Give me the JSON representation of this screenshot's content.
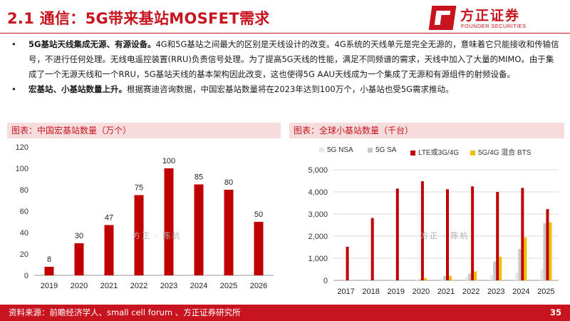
{
  "header": {
    "title": "2.1 通信：5G带来基站MOSFET需求",
    "logo_cn": "方正证券",
    "logo_en": "FOUNDER SECURITIES"
  },
  "bullets": [
    {
      "marker": "•",
      "lead": "5G基站天线集成无源、有源设备。",
      "text": "4G和5G基站之间最大的区别是天线设计的改变。4G系统的天线单元是完全无源的，意味着它只能接收和传输信号，不进行任何处理。无线电遥控装置(RRU)负责信号处理。为了提高5G天线的性能，满足不同频谱的需求，天线中加入了大量的MIMO。由于集成了一个无源天线和一个RRU，5G基站天线的基本架构因此改变，这也使得5G AAU天线成为一个集成了无源和有源组件的射频设备。"
    },
    {
      "marker": "•",
      "lead": "宏基站、小基站数量上升。",
      "text": "根据赛迪咨询数据，中国宏基站数量将在2023年达到100万个，小基站也受5G需求推动。"
    }
  ],
  "left_panel": {
    "heading": "图表：中国宏基站数量（万个）"
  },
  "right_panel": {
    "heading": "图表：全球小基站数量（千台）"
  },
  "watermark": "方正 · 陈杭",
  "colors": {
    "brand_red": "#c8141e",
    "bar_red": "#c00000",
    "nsa": "#e8e8e8",
    "sa": "#c8c8c8",
    "bts": "#f0c000"
  },
  "chart_data": [
    {
      "type": "bar",
      "title": "图表：中国宏基站数量（万个）",
      "categories": [
        "2019",
        "2020",
        "2021",
        "2022",
        "2023",
        "2024",
        "2025",
        "2026"
      ],
      "values": [
        8,
        30,
        47,
        75,
        100,
        85,
        80,
        50
      ],
      "data_labels": [
        "8",
        "30",
        "47",
        "75",
        "100",
        "85",
        "80",
        "50"
      ],
      "ylim": [
        0,
        120
      ],
      "yticks": [
        "0",
        "20",
        "40",
        "60",
        "80",
        "100",
        "120"
      ],
      "xlabel": "",
      "ylabel": "",
      "grid": false
    },
    {
      "type": "bar",
      "title": "图表：全球小基站数量（千台）",
      "categories": [
        "2017",
        "2018",
        "2019",
        "2020",
        "2021",
        "2022",
        "2023",
        "2024",
        "2025"
      ],
      "series": [
        {
          "name": "5G NSA",
          "values": [
            0,
            0,
            0,
            20,
            80,
            150,
            250,
            350,
            500
          ]
        },
        {
          "name": "5G SA",
          "values": [
            0,
            0,
            0,
            50,
            200,
            300,
            850,
            1420,
            2580
          ]
        },
        {
          "name": "LTE或3G/4G",
          "values": [
            1520,
            2820,
            4150,
            4480,
            4120,
            4250,
            4000,
            4180,
            3220
          ]
        },
        {
          "name": "5G/4G 混合 BTS",
          "values": [
            0,
            0,
            0,
            100,
            200,
            400,
            1060,
            1940,
            2620
          ]
        }
      ],
      "ylim": [
        0,
        5000
      ],
      "yticks": [
        "0",
        "1,000",
        "2,000",
        "3,000",
        "4,000",
        "5,000"
      ],
      "xlabel": "",
      "ylabel": "",
      "grid": true,
      "legend_position": "top"
    }
  ],
  "footer": {
    "source": "资料来源：前瞻经济学人、small cell forum 、方正证券研究所",
    "page": "35"
  }
}
